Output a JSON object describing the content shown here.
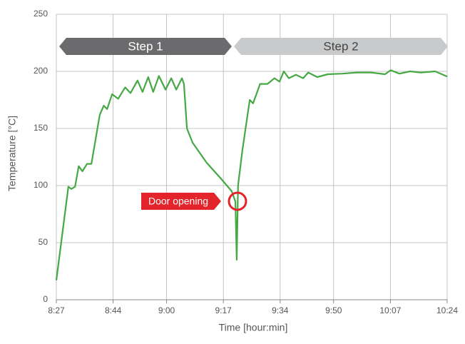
{
  "chart_data": {
    "type": "line",
    "x_label": "Time [hour:min]",
    "y_label": "Temperature [°C]",
    "annotations": [
      "Step 1",
      "Step 2",
      "Door opening"
    ],
    "x": [
      507,
      510.6,
      511.5,
      512.6,
      513.7,
      514.8,
      516.2,
      517.5,
      520,
      521.2,
      522.2,
      523.7,
      525.5,
      527.6,
      529.2,
      531.3,
      532.8,
      534.5,
      536,
      537.7,
      539.7,
      541.4,
      542.9,
      544.6,
      545.2,
      546.1,
      547.8,
      552,
      556.3,
      559.5,
      560.6,
      561,
      561.4,
      562.7,
      564.9,
      565.9,
      568,
      570.2,
      572.3,
      573.8,
      575.1,
      576.6,
      578.7,
      580.9,
      582.4,
      585.1,
      588.3,
      592.6,
      596.9,
      601.2,
      605.4,
      607.1,
      609.7,
      612.9,
      616.1,
      620.4,
      624
    ],
    "values": [
      17,
      99,
      97,
      99,
      117,
      112.5,
      119,
      119,
      162,
      170,
      167,
      180,
      176,
      186,
      181,
      192,
      182,
      195,
      182,
      196,
      184,
      194,
      184,
      194,
      189,
      150,
      137.5,
      120,
      106,
      95,
      86,
      35,
      100,
      131,
      175,
      172,
      189,
      189,
      194,
      191,
      200,
      194,
      197,
      194,
      199,
      195,
      197.5,
      198,
      199,
      199,
      197.5,
      201,
      198,
      200,
      199,
      200,
      195.5
    ],
    "color": "#45a845",
    "xlim": [
      507,
      624
    ],
    "xticks": [
      {
        "value": 507,
        "label": "8:27"
      },
      {
        "value": 524,
        "label": "8:44"
      },
      {
        "value": 540,
        "label": "9:00"
      },
      {
        "value": 557,
        "label": "9:17"
      },
      {
        "value": 574,
        "label": "9:34"
      },
      {
        "value": 590,
        "label": "9:50"
      },
      {
        "value": 607,
        "label": "10:07"
      },
      {
        "value": 624,
        "label": "10:24"
      }
    ],
    "ylim": [
      0,
      250
    ],
    "yticks": [
      0,
      50,
      100,
      150,
      200,
      250
    ],
    "grid": true
  }
}
